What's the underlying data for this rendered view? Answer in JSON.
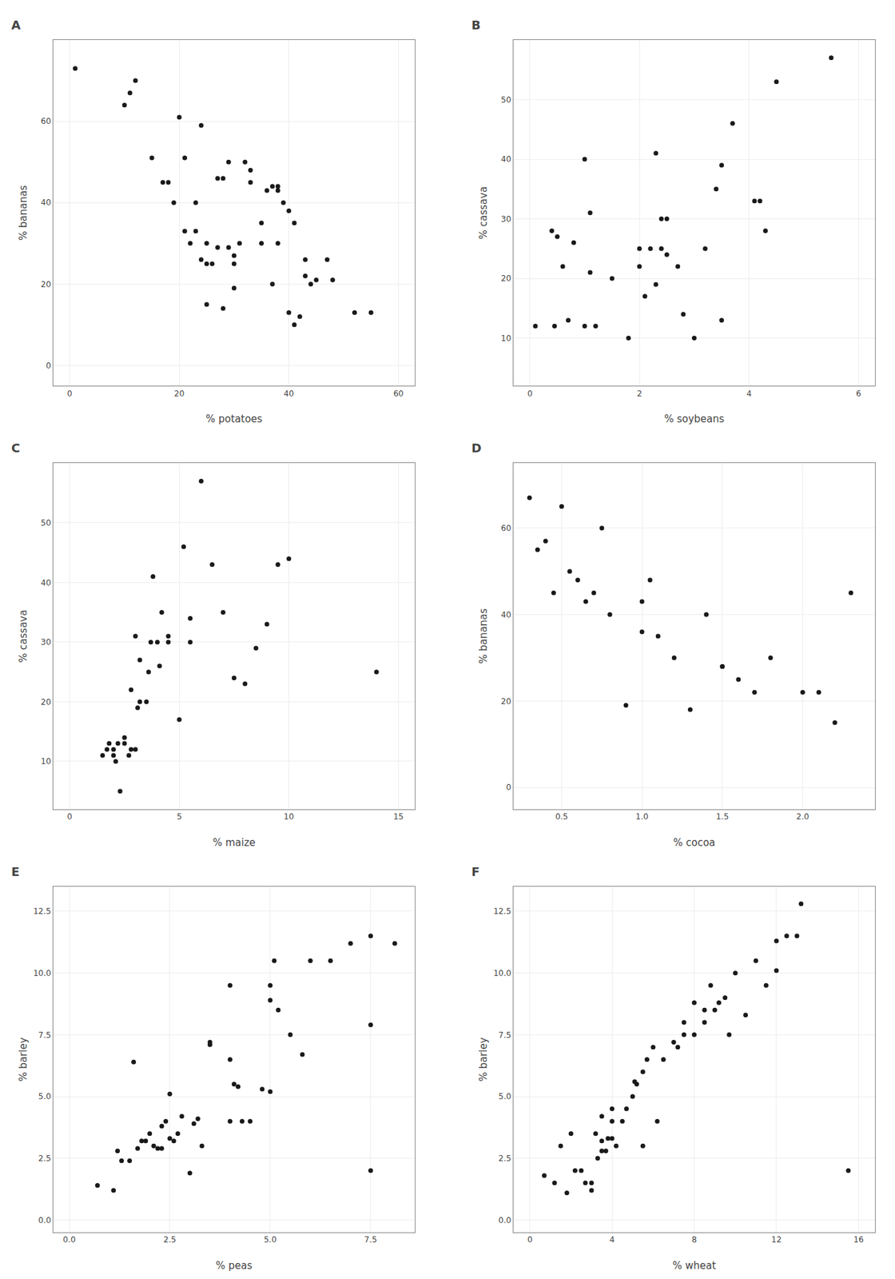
{
  "chart_data": [
    {
      "type": "scatter",
      "title": "A",
      "xlabel": "% potatoes",
      "ylabel": "% bananas",
      "xlim": [
        -3,
        63
      ],
      "ylim": [
        -5,
        80
      ],
      "xticks": [
        0,
        20,
        40,
        60
      ],
      "yticks": [
        0,
        20,
        40,
        60
      ],
      "color": "#1a1a1a",
      "grid": true,
      "x": [
        1,
        10,
        11,
        12,
        15,
        17,
        18,
        19,
        20,
        21,
        21,
        22,
        23,
        23,
        24,
        24,
        25,
        25,
        25,
        26,
        27,
        27,
        28,
        28,
        29,
        29,
        30,
        30,
        30,
        31,
        32,
        33,
        33,
        35,
        35,
        36,
        37,
        37,
        38,
        38,
        38,
        39,
        40,
        40,
        41,
        41,
        42,
        43,
        43,
        44,
        45,
        47,
        48,
        52,
        55
      ],
      "values": [
        73,
        64,
        67,
        70,
        51,
        45,
        45,
        40,
        61,
        33,
        51,
        30,
        33,
        40,
        26,
        59,
        15,
        25,
        30,
        25,
        29,
        46,
        14,
        46,
        29,
        50,
        19,
        25,
        27,
        30,
        50,
        45,
        48,
        30,
        35,
        43,
        20,
        44,
        30,
        43,
        44,
        40,
        38,
        13,
        10,
        35,
        12,
        22,
        26,
        20,
        21,
        26,
        21,
        13,
        13
      ]
    },
    {
      "type": "scatter",
      "title": "B",
      "xlabel": "% soybeans",
      "ylabel": "% cassava",
      "xlim": [
        -0.3,
        6.3
      ],
      "ylim": [
        2,
        60
      ],
      "xticks": [
        0,
        2,
        4,
        6
      ],
      "yticks": [
        10,
        20,
        30,
        40,
        50
      ],
      "color": "#1a1a1a",
      "grid": true,
      "x": [
        0.1,
        0.4,
        0.45,
        0.5,
        0.6,
        0.7,
        0.8,
        1.0,
        1.0,
        1.1,
        1.1,
        1.2,
        1.5,
        1.8,
        2.0,
        2.0,
        2.1,
        2.2,
        2.3,
        2.3,
        2.4,
        2.4,
        2.5,
        2.5,
        2.7,
        2.8,
        3.0,
        3.2,
        3.4,
        3.5,
        3.5,
        3.7,
        4.1,
        4.2,
        4.3,
        4.5,
        5.5
      ],
      "values": [
        12,
        28,
        12,
        27,
        22,
        13,
        26,
        40,
        12,
        21,
        31,
        12,
        20,
        10,
        22,
        25,
        17,
        25,
        19,
        41,
        30,
        25,
        24,
        30,
        22,
        14,
        10,
        25,
        35,
        39,
        13,
        46,
        33,
        33,
        28,
        53,
        57
      ]
    },
    {
      "type": "scatter",
      "title": "C",
      "xlabel": "% maize",
      "ylabel": "% cassava",
      "xlim": [
        -0.75,
        15.75
      ],
      "ylim": [
        2,
        60
      ],
      "xticks": [
        0,
        5,
        10,
        15
      ],
      "yticks": [
        10,
        20,
        30,
        40,
        50
      ],
      "color": "#1a1a1a",
      "grid": true,
      "x": [
        1.5,
        1.7,
        1.8,
        2.0,
        2.0,
        2.1,
        2.2,
        2.3,
        2.5,
        2.5,
        2.7,
        2.8,
        2.8,
        3.0,
        3.0,
        3.1,
        3.2,
        3.2,
        3.5,
        3.6,
        3.7,
        3.8,
        4.0,
        4.1,
        4.2,
        4.5,
        4.5,
        5.0,
        5.2,
        5.5,
        5.5,
        6.0,
        6.5,
        7.0,
        7.5,
        8.0,
        8.5,
        9.0,
        9.5,
        10.0,
        14.0
      ],
      "values": [
        11,
        12,
        13,
        11,
        12,
        10,
        13,
        5,
        13,
        14,
        11,
        12,
        22,
        12,
        31,
        19,
        20,
        27,
        20,
        25,
        30,
        41,
        30,
        26,
        35,
        30,
        31,
        17,
        46,
        30,
        34,
        57,
        43,
        35,
        24,
        23,
        29,
        33,
        43,
        44,
        25
      ]
    },
    {
      "type": "scatter",
      "title": "D",
      "xlabel": "% cocoa",
      "ylabel": "% bananas",
      "xlim": [
        0.2,
        2.45
      ],
      "ylim": [
        -5,
        75
      ],
      "xticks": [
        0.5,
        {
          "value": 1.0,
          "label": "1.0"
        },
        1.5,
        {
          "value": 2.0,
          "label": "2.0"
        }
      ],
      "yticks": [
        0,
        20,
        40,
        60
      ],
      "color": "#1a1a1a",
      "grid": true,
      "x": [
        0.3,
        0.35,
        0.4,
        0.45,
        0.5,
        0.55,
        0.6,
        0.65,
        0.7,
        0.75,
        0.8,
        0.9,
        1.0,
        1.0,
        1.05,
        1.1,
        1.2,
        1.3,
        1.4,
        1.5,
        1.5,
        1.6,
        1.7,
        1.8,
        2.0,
        2.1,
        2.2,
        2.3
      ],
      "values": [
        67,
        55,
        57,
        45,
        65,
        50,
        48,
        43,
        45,
        60,
        40,
        19,
        36,
        43,
        48,
        35,
        30,
        18,
        40,
        28,
        28,
        25,
        22,
        30,
        22,
        22,
        15,
        45
      ]
    },
    {
      "type": "scatter",
      "title": "E",
      "xlabel": "% peas",
      "ylabel": "% barley",
      "xlim": [
        -0.4,
        8.6
      ],
      "ylim": [
        -0.5,
        13.5
      ],
      "xticks": [
        {
          "value": 0.0,
          "label": "0.0"
        },
        2.5,
        {
          "value": 5.0,
          "label": "5.0"
        },
        7.5
      ],
      "yticks": [
        {
          "value": 0.0,
          "label": "0.0"
        },
        2.5,
        {
          "value": 5.0,
          "label": "5.0"
        },
        7.5,
        {
          "value": 10.0,
          "label": "10.0"
        },
        12.5
      ],
      "color": "#1a1a1a",
      "grid": true,
      "x": [
        0.7,
        1.1,
        1.2,
        1.3,
        1.5,
        1.6,
        1.7,
        1.8,
        1.9,
        2.0,
        2.1,
        2.2,
        2.3,
        2.3,
        2.4,
        2.5,
        2.5,
        2.6,
        2.7,
        2.8,
        3.0,
        3.1,
        3.2,
        3.3,
        3.5,
        3.5,
        4.0,
        4.0,
        4.0,
        4.1,
        4.2,
        4.3,
        4.5,
        4.8,
        5.0,
        5.0,
        5.0,
        5.1,
        5.2,
        5.5,
        5.8,
        6.0,
        6.5,
        7.0,
        7.5,
        7.5,
        7.5,
        8.1
      ],
      "values": [
        1.4,
        1.2,
        2.8,
        2.4,
        2.4,
        6.4,
        2.9,
        3.2,
        3.2,
        3.5,
        3.0,
        2.9,
        2.9,
        3.8,
        4.0,
        3.3,
        5.1,
        3.2,
        3.5,
        4.2,
        1.9,
        3.9,
        4.1,
        3.0,
        7.2,
        7.1,
        4.0,
        6.5,
        9.5,
        5.5,
        5.4,
        4.0,
        4.0,
        5.3,
        5.2,
        8.9,
        9.5,
        10.5,
        8.5,
        7.5,
        6.7,
        10.5,
        10.5,
        11.2,
        2.0,
        11.5,
        7.9,
        11.2
      ]
    },
    {
      "type": "scatter",
      "title": "F",
      "xlabel": "% wheat",
      "ylabel": "% barley",
      "xlim": [
        -0.8,
        16.8
      ],
      "ylim": [
        -0.5,
        13.5
      ],
      "xticks": [
        0,
        4,
        8,
        12,
        16
      ],
      "yticks": [
        {
          "value": 0.0,
          "label": "0.0"
        },
        2.5,
        {
          "value": 5.0,
          "label": "5.0"
        },
        7.5,
        {
          "value": 10.0,
          "label": "10.0"
        },
        12.5
      ],
      "color": "#1a1a1a",
      "grid": true,
      "x": [
        0.7,
        1.2,
        1.5,
        1.8,
        2.0,
        2.2,
        2.5,
        2.7,
        3.0,
        3.0,
        3.2,
        3.3,
        3.5,
        3.5,
        3.5,
        3.7,
        3.8,
        4.0,
        4.0,
        4.0,
        4.2,
        4.5,
        4.7,
        5.0,
        5.1,
        5.2,
        5.5,
        5.5,
        5.7,
        6.0,
        6.2,
        6.5,
        7.0,
        7.2,
        7.5,
        7.5,
        8.0,
        8.0,
        8.5,
        8.5,
        8.8,
        9.0,
        9.2,
        9.5,
        9.7,
        10.0,
        10.5,
        11.0,
        11.5,
        12.0,
        12.0,
        12.5,
        13.0,
        13.2,
        15.5
      ],
      "values": [
        1.8,
        1.5,
        3.0,
        1.1,
        3.5,
        2.0,
        2.0,
        1.5,
        1.5,
        1.2,
        3.5,
        2.5,
        2.8,
        3.2,
        4.2,
        2.8,
        3.3,
        3.3,
        4.0,
        4.5,
        3.0,
        4.0,
        4.5,
        5.0,
        5.6,
        5.5,
        3.0,
        6.0,
        6.5,
        7.0,
        4.0,
        6.5,
        7.2,
        7.0,
        7.5,
        8.0,
        7.5,
        8.8,
        8.5,
        8.0,
        9.5,
        8.5,
        8.8,
        9.0,
        7.5,
        10.0,
        8.3,
        10.5,
        9.5,
        10.1,
        11.3,
        11.5,
        11.5,
        12.8,
        2.0
      ]
    }
  ]
}
